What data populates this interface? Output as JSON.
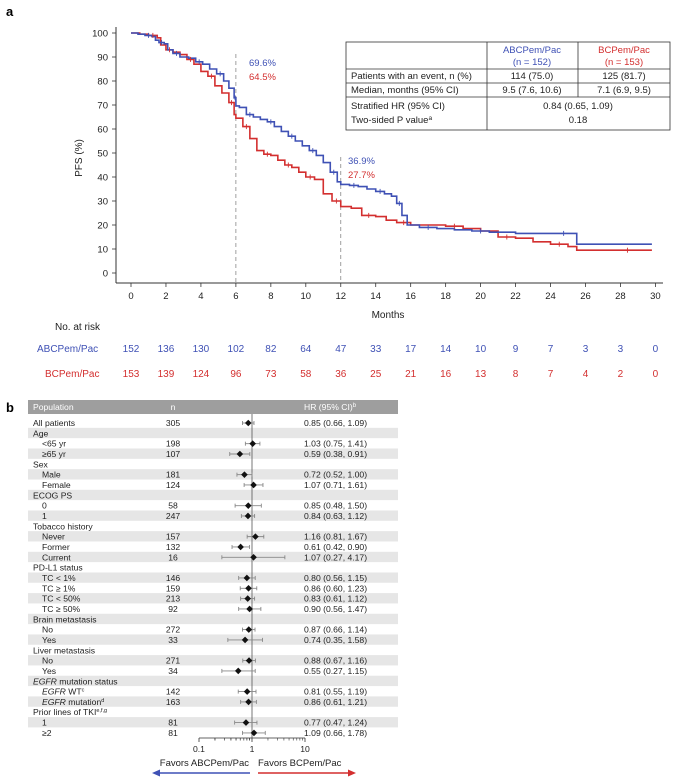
{
  "panel_a": {
    "label": "a",
    "chart_data": {
      "type": "line",
      "ylabel": "PFS (%)",
      "xlabel": "Months",
      "xlim": [
        0,
        30
      ],
      "ylim": [
        0,
        100
      ],
      "xticks": [
        0,
        2,
        4,
        6,
        8,
        10,
        12,
        14,
        16,
        18,
        20,
        22,
        24,
        26,
        28,
        30
      ],
      "yticks": [
        0,
        10,
        20,
        30,
        40,
        50,
        60,
        70,
        80,
        90,
        100
      ],
      "series": [
        {
          "name": "ABCPem/Pac",
          "color": "#3f51b5",
          "points": [
            [
              0,
              100
            ],
            [
              0.4,
              99.5
            ],
            [
              0.8,
              99
            ],
            [
              1.2,
              98.5
            ],
            [
              1.4,
              97
            ],
            [
              1.6,
              96
            ],
            [
              1.9,
              95.5
            ],
            [
              2.1,
              93
            ],
            [
              2.4,
              91.5
            ],
            [
              2.8,
              90
            ],
            [
              3.3,
              89.5
            ],
            [
              3.7,
              88
            ],
            [
              4.1,
              87
            ],
            [
              4.5,
              85
            ],
            [
              4.9,
              83
            ],
            [
              5.3,
              80
            ],
            [
              5.6,
              77
            ],
            [
              5.9,
              73
            ],
            [
              6.0,
              69.6
            ],
            [
              6.2,
              69
            ],
            [
              6.6,
              66
            ],
            [
              7.0,
              65
            ],
            [
              7.4,
              64
            ],
            [
              7.8,
              63
            ],
            [
              8.2,
              61
            ],
            [
              8.6,
              59
            ],
            [
              9.0,
              57
            ],
            [
              9.4,
              55
            ],
            [
              9.8,
              53
            ],
            [
              10.2,
              51
            ],
            [
              10.6,
              49
            ],
            [
              11.0,
              46
            ],
            [
              11.4,
              42
            ],
            [
              11.8,
              38
            ],
            [
              12.0,
              36.9
            ],
            [
              12.5,
              36.5
            ],
            [
              13.0,
              36
            ],
            [
              13.5,
              35
            ],
            [
              14.0,
              34
            ],
            [
              14.5,
              33
            ],
            [
              14.9,
              32
            ],
            [
              15.2,
              29
            ],
            [
              15.5,
              24
            ],
            [
              15.8,
              20
            ],
            [
              16.5,
              19
            ],
            [
              17.5,
              18.5
            ],
            [
              18.5,
              18
            ],
            [
              19.5,
              17.5
            ],
            [
              20.5,
              17
            ],
            [
              22.0,
              16.5
            ],
            [
              24.0,
              16.5
            ],
            [
              25.5,
              12
            ],
            [
              27.0,
              12
            ],
            [
              29.8,
              12
            ]
          ],
          "landmark": {
            "month": 6,
            "value": 69.6,
            "label": "69.6%"
          },
          "landmark2": {
            "month": 12,
            "value": 36.9,
            "label": "36.9%"
          }
        },
        {
          "name": "BCPem/Pac",
          "color": "#d32f2f",
          "points": [
            [
              0,
              100
            ],
            [
              0.5,
              99.5
            ],
            [
              1.0,
              99
            ],
            [
              1.5,
              98
            ],
            [
              1.7,
              95
            ],
            [
              2.0,
              93
            ],
            [
              2.4,
              92
            ],
            [
              2.8,
              91
            ],
            [
              3.2,
              89
            ],
            [
              3.6,
              87
            ],
            [
              4.0,
              84
            ],
            [
              4.4,
              82
            ],
            [
              4.8,
              78
            ],
            [
              5.2,
              75
            ],
            [
              5.6,
              71
            ],
            [
              5.9,
              66
            ],
            [
              6.0,
              64.5
            ],
            [
              6.4,
              61
            ],
            [
              6.8,
              56
            ],
            [
              7.2,
              51
            ],
            [
              7.6,
              49.5
            ],
            [
              8.0,
              49
            ],
            [
              8.4,
              47
            ],
            [
              8.8,
              45
            ],
            [
              9.2,
              44
            ],
            [
              9.6,
              42
            ],
            [
              10.0,
              40
            ],
            [
              10.5,
              39
            ],
            [
              11.0,
              33
            ],
            [
              11.5,
              30
            ],
            [
              12.0,
              27.7
            ],
            [
              12.6,
              27
            ],
            [
              13.2,
              24
            ],
            [
              14.0,
              23.5
            ],
            [
              14.6,
              22
            ],
            [
              15.2,
              21
            ],
            [
              16.0,
              20
            ],
            [
              17.0,
              20
            ],
            [
              18.0,
              19.5
            ],
            [
              19.0,
              18.5
            ],
            [
              20.0,
              17.5
            ],
            [
              21.0,
              15
            ],
            [
              22.0,
              14.5
            ],
            [
              23.0,
              13
            ],
            [
              24.0,
              12
            ],
            [
              25.0,
              11
            ],
            [
              25.5,
              9.5
            ],
            [
              27.0,
              9.5
            ],
            [
              29.8,
              9.5
            ]
          ],
          "landmark": {
            "month": 6,
            "value": 64.5,
            "label": "64.5%"
          },
          "landmark2": {
            "month": 12,
            "value": 27.7,
            "label": "27.7%"
          }
        }
      ]
    },
    "table": {
      "col1_line1": "ABCPem/Pac",
      "col1_line2": "(n = 152)",
      "col2_line1": "BCPem/Pac",
      "col2_line2": "(n = 153)",
      "row1_label": "Patients with an event, n (%)",
      "row1_v1": "114 (75.0)",
      "row1_v2": "125 (81.7)",
      "row2_label": "Median, months (95% CI)",
      "row2_v1": "9.5 (7.6, 10.6)",
      "row2_v2": "7.1 (6.9, 9.5)",
      "row3_label": "Stratified HR (95% CI)",
      "row3_value": "0.84 (0.65, 1.09)",
      "row4_label": "Two-sided P value",
      "row4_sup": "a",
      "row4_value": "0.18"
    },
    "risk": {
      "title": "No. at risk",
      "rows": [
        {
          "name": "ABCPem/Pac",
          "values": [
            "152",
            "136",
            "130",
            "102",
            "82",
            "64",
            "47",
            "33",
            "17",
            "14",
            "10",
            "9",
            "7",
            "3",
            "3",
            "0"
          ]
        },
        {
          "name": "BCPem/Pac",
          "values": [
            "153",
            "139",
            "124",
            "96",
            "73",
            "58",
            "36",
            "25",
            "21",
            "16",
            "13",
            "8",
            "7",
            "4",
            "2",
            "0"
          ]
        }
      ]
    }
  },
  "panel_b": {
    "label": "b",
    "header": {
      "population": "Population",
      "n": "n",
      "hr": "HR (95% CI)",
      "hr_sup": "b"
    },
    "rows": [
      {
        "label": "All patients",
        "n": "305",
        "hr": 0.85,
        "lo": 0.66,
        "hi": 1.09,
        "text": "0.85 (0.66, 1.09)"
      },
      {
        "label": "Age",
        "header": true
      },
      {
        "label": "<65 yr",
        "indent": true,
        "n": "198",
        "hr": 1.03,
        "lo": 0.75,
        "hi": 1.41,
        "text": "1.03 (0.75, 1.41)"
      },
      {
        "label": "≥65 yr",
        "indent": true,
        "n": "107",
        "hr": 0.59,
        "lo": 0.38,
        "hi": 0.91,
        "text": "0.59 (0.38, 0.91)"
      },
      {
        "label": "Sex",
        "header": true
      },
      {
        "label": "Male",
        "indent": true,
        "n": "181",
        "hr": 0.72,
        "lo": 0.52,
        "hi": 1.0,
        "text": "0.72 (0.52, 1.00)"
      },
      {
        "label": "Female",
        "indent": true,
        "n": "124",
        "hr": 1.07,
        "lo": 0.71,
        "hi": 1.61,
        "text": "1.07 (0.71, 1.61)"
      },
      {
        "label": "ECOG PS",
        "header": true
      },
      {
        "label": "0",
        "indent": true,
        "n": "58",
        "hr": 0.85,
        "lo": 0.48,
        "hi": 1.5,
        "text": "0.85 (0.48, 1.50)"
      },
      {
        "label": "1",
        "indent": true,
        "n": "247",
        "hr": 0.84,
        "lo": 0.63,
        "hi": 1.12,
        "text": "0.84 (0.63, 1.12)"
      },
      {
        "label": "Tobacco history",
        "header": true
      },
      {
        "label": "Never",
        "indent": true,
        "n": "157",
        "hr": 1.16,
        "lo": 0.81,
        "hi": 1.67,
        "text": "1.16 (0.81, 1.67)"
      },
      {
        "label": "Former",
        "indent": true,
        "n": "132",
        "hr": 0.61,
        "lo": 0.42,
        "hi": 0.9,
        "text": "0.61 (0.42, 0.90)"
      },
      {
        "label": "Current",
        "indent": true,
        "n": "16",
        "hr": 1.07,
        "lo": 0.27,
        "hi": 4.17,
        "text": "1.07 (0.27, 4.17)"
      },
      {
        "label": "PD-L1 status",
        "header": true
      },
      {
        "label": "TC < 1%",
        "indent": true,
        "n": "146",
        "hr": 0.8,
        "lo": 0.56,
        "hi": 1.15,
        "text": "0.80 (0.56, 1.15)"
      },
      {
        "label": "TC ≥ 1%",
        "indent": true,
        "n": "159",
        "hr": 0.86,
        "lo": 0.6,
        "hi": 1.23,
        "text": "0.86 (0.60, 1.23)"
      },
      {
        "label": "TC < 50%",
        "indent": true,
        "n": "213",
        "hr": 0.83,
        "lo": 0.61,
        "hi": 1.12,
        "text": "0.83 (0.61, 1.12)"
      },
      {
        "label": "TC ≥ 50%",
        "indent": true,
        "n": "92",
        "hr": 0.9,
        "lo": 0.56,
        "hi": 1.47,
        "text": "0.90 (0.56, 1.47)"
      },
      {
        "label": "Brain metastasis",
        "header": true
      },
      {
        "label": "No",
        "indent": true,
        "n": "272",
        "hr": 0.87,
        "lo": 0.66,
        "hi": 1.14,
        "text": "0.87 (0.66, 1.14)"
      },
      {
        "label": "Yes",
        "indent": true,
        "n": "33",
        "hr": 0.74,
        "lo": 0.35,
        "hi": 1.58,
        "text": "0.74 (0.35, 1.58)"
      },
      {
        "label": "Liver metastasis",
        "header": true
      },
      {
        "label": "No",
        "indent": true,
        "n": "271",
        "hr": 0.88,
        "lo": 0.67,
        "hi": 1.16,
        "text": "0.88 (0.67, 1.16)"
      },
      {
        "label": "Yes",
        "indent": true,
        "n": "34",
        "hr": 0.55,
        "lo": 0.27,
        "hi": 1.15,
        "text": "0.55 (0.27, 1.15)"
      },
      {
        "label": "EGFR mutation status",
        "header": true,
        "italic_prefix": "EGFR",
        "rest": " mutation status"
      },
      {
        "label": "EGFR WT",
        "indent": true,
        "italic_prefix": "EGFR",
        "rest": " WT",
        "sup": "c",
        "n": "142",
        "hr": 0.81,
        "lo": 0.55,
        "hi": 1.19,
        "text": "0.81 (0.55, 1.19)"
      },
      {
        "label": "EGFR mutation",
        "indent": true,
        "italic_prefix": "EGFR",
        "rest": " mutation",
        "sup": "d",
        "n": "163",
        "hr": 0.86,
        "lo": 0.61,
        "hi": 1.21,
        "text": "0.86 (0.61, 1.21)"
      },
      {
        "label": "Prior lines of TKI",
        "header": true,
        "sup": "e,f,g"
      },
      {
        "label": "1",
        "indent": true,
        "n": "81",
        "hr": 0.77,
        "lo": 0.47,
        "hi": 1.24,
        "text": "0.77 (0.47, 1.24)"
      },
      {
        "label": "≥2",
        "indent": true,
        "n": "81",
        "hr": 1.09,
        "lo": 0.66,
        "hi": 1.78,
        "text": "1.09 (0.66, 1.78)"
      }
    ],
    "axis": {
      "ticks": [
        0.1,
        1,
        10
      ],
      "tick_labels": [
        "0.1",
        "1",
        "10"
      ]
    },
    "favors_left": "Favors ABCPem/Pac",
    "favors_right": "Favors BCPem/Pac",
    "colors": {
      "header_bg": "#9e9e9e",
      "stripe": "#e6e6e6",
      "blue": "#3f51b5",
      "red": "#d32f2f"
    }
  }
}
